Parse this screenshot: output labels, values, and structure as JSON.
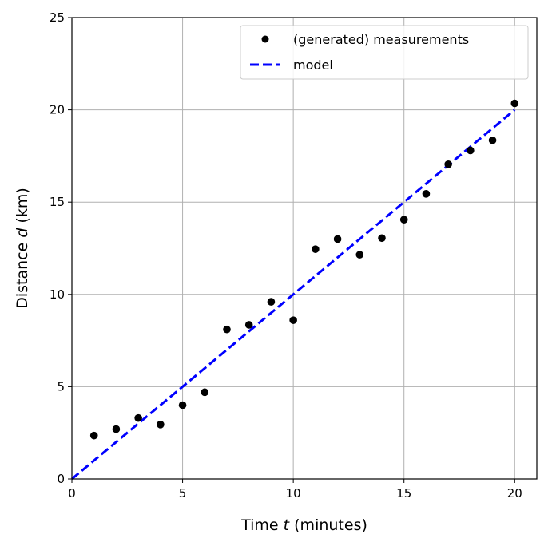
{
  "chart_data": {
    "type": "scatter",
    "x_axis": {
      "label_prefix": "Time ",
      "label_var": "t",
      "label_suffix": " (minutes)",
      "range": [
        0,
        21
      ],
      "ticks": [
        0,
        5,
        10,
        15,
        20
      ]
    },
    "y_axis": {
      "label_prefix": "Distance ",
      "label_var": "d",
      "label_suffix": " (km)",
      "range": [
        0,
        25
      ],
      "ticks": [
        0,
        5,
        10,
        15,
        20,
        25
      ]
    },
    "grid": true,
    "legend_position": "top-right",
    "series": [
      {
        "name": "(generated) measurements",
        "style": "markers",
        "color": "#000000",
        "x": [
          1,
          2,
          3,
          4,
          5,
          6,
          7,
          8,
          9,
          10,
          11,
          12,
          13,
          14,
          15,
          16,
          17,
          18,
          19,
          20
        ],
        "y": [
          2.35,
          2.7,
          3.3,
          2.95,
          4.0,
          4.7,
          8.1,
          8.35,
          9.6,
          8.6,
          12.45,
          13.0,
          12.15,
          13.05,
          14.05,
          15.45,
          17.05,
          17.8,
          18.35,
          20.35
        ]
      },
      {
        "name": "model",
        "style": "dashed-line",
        "color": "#0000ff",
        "x": [
          0,
          20
        ],
        "y": [
          0,
          20
        ]
      }
    ]
  }
}
